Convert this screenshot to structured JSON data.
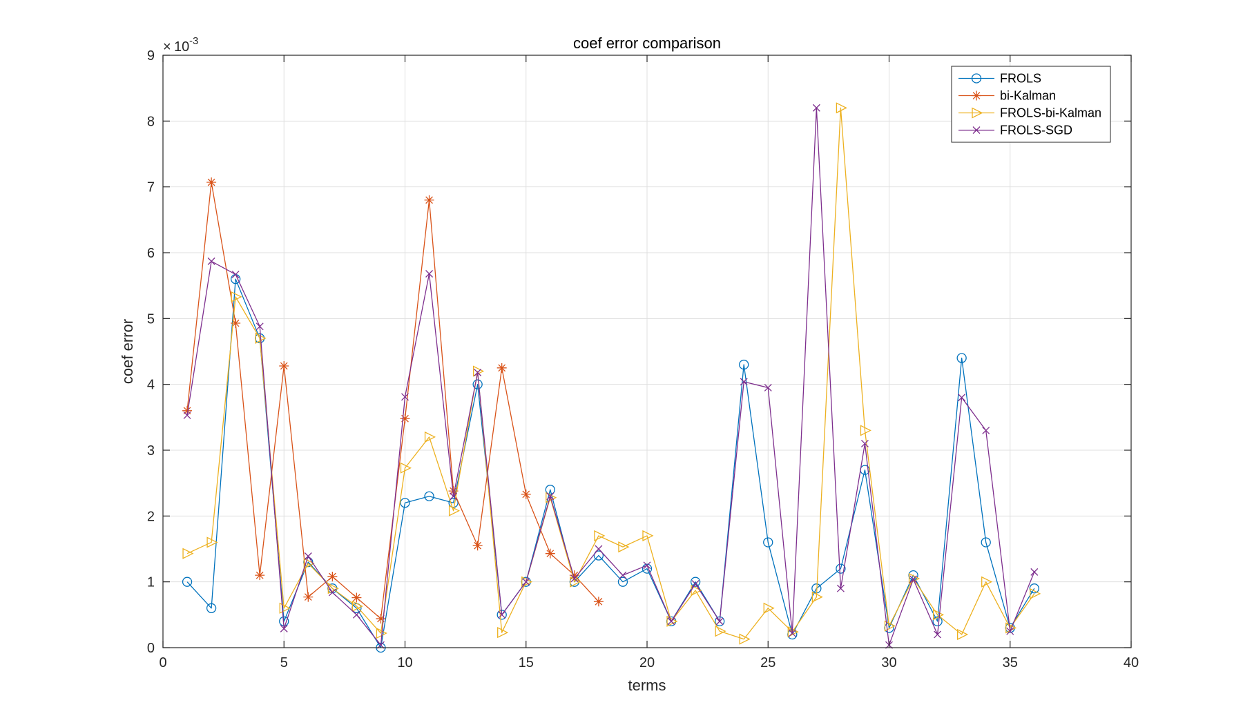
{
  "chart_data": {
    "type": "line",
    "title": "coef error comparison",
    "xlabel": "terms",
    "ylabel": "coef error",
    "xlim": [
      0,
      40
    ],
    "ylim": [
      0,
      9
    ],
    "xticks": [
      0,
      5,
      10,
      15,
      20,
      25,
      30,
      35,
      40
    ],
    "yticks": [
      0,
      1,
      2,
      3,
      4,
      5,
      6,
      7,
      8,
      9
    ],
    "x_tick_labels": [
      "0",
      "5",
      "10",
      "15",
      "20",
      "25",
      "30",
      "35",
      "40"
    ],
    "y_tick_labels": [
      "0",
      "1",
      "2",
      "3",
      "4",
      "5",
      "6",
      "7",
      "8",
      "9"
    ],
    "y_exponent": {
      "base": "10",
      "exponent": "-3"
    },
    "grid": true,
    "legend_position": "top-right",
    "series": [
      {
        "name": "FROLS",
        "color": "#0072BD",
        "marker": "circle",
        "x": [
          1,
          2,
          3,
          4,
          5,
          6,
          7,
          8,
          9,
          10,
          11,
          12,
          13,
          14,
          15,
          16,
          17,
          18,
          19,
          20,
          21,
          22,
          23,
          24,
          25,
          26,
          27,
          28,
          29,
          30,
          31,
          32,
          33,
          34,
          35,
          36
        ],
        "values": [
          1.0,
          0.6,
          5.6,
          4.7,
          0.4,
          1.3,
          0.9,
          0.6,
          0.0,
          2.2,
          2.3,
          2.2,
          4.0,
          0.5,
          1.0,
          2.4,
          1.0,
          1.4,
          1.0,
          1.2,
          0.4,
          1.0,
          0.4,
          4.3,
          1.6,
          0.2,
          0.9,
          1.2,
          2.7,
          0.3,
          1.1,
          0.4,
          4.4,
          1.6,
          0.3,
          0.9
        ]
      },
      {
        "name": "bi-Kalman",
        "color": "#D95319",
        "marker": "asterisk",
        "x": [
          1,
          2,
          3,
          4,
          5,
          6,
          7,
          8,
          9,
          10,
          11,
          12,
          13,
          14,
          15,
          16,
          17,
          18
        ],
        "values": [
          3.6,
          7.07,
          4.93,
          1.1,
          4.28,
          0.77,
          1.08,
          0.76,
          0.44,
          3.48,
          6.8,
          2.38,
          1.55,
          4.25,
          2.33,
          1.43,
          1.1,
          0.7
        ]
      },
      {
        "name": "FROLS-bi-Kalman",
        "color": "#EDB120",
        "marker": "triangle-right",
        "x": [
          1,
          2,
          3,
          4,
          5,
          6,
          7,
          8,
          9,
          10,
          11,
          12,
          13,
          14,
          15,
          16,
          17,
          18,
          19,
          20,
          21,
          22,
          23,
          24,
          25,
          26,
          27,
          28,
          29,
          30,
          31,
          32,
          33,
          34,
          35,
          36
        ],
        "values": [
          1.43,
          1.6,
          5.33,
          4.7,
          0.6,
          1.28,
          0.9,
          0.63,
          0.22,
          2.73,
          3.2,
          2.08,
          4.2,
          0.23,
          1.0,
          2.28,
          1.0,
          1.7,
          1.53,
          1.7,
          0.4,
          0.87,
          0.25,
          0.13,
          0.6,
          0.24,
          0.77,
          8.2,
          3.3,
          0.33,
          1.05,
          0.5,
          0.2,
          1.0,
          0.3,
          0.82
        ]
      },
      {
        "name": "FROLS-SGD",
        "color": "#7E2F8E",
        "marker": "x",
        "x": [
          1,
          2,
          3,
          4,
          5,
          6,
          7,
          8,
          9,
          10,
          11,
          12,
          13,
          14,
          15,
          16,
          17,
          18,
          19,
          20,
          21,
          22,
          23,
          24,
          25,
          26,
          27,
          28,
          29,
          30,
          31,
          32,
          33,
          34,
          35,
          36
        ],
        "values": [
          3.53,
          5.87,
          5.67,
          4.88,
          0.29,
          1.39,
          0.84,
          0.5,
          0.04,
          3.81,
          5.68,
          2.3,
          4.18,
          0.5,
          1.0,
          2.3,
          1.05,
          1.5,
          1.1,
          1.25,
          0.4,
          0.97,
          0.4,
          4.04,
          3.95,
          0.22,
          8.2,
          0.9,
          3.1,
          0.04,
          1.04,
          0.2,
          3.8,
          3.3,
          0.25,
          1.15
        ]
      }
    ]
  }
}
